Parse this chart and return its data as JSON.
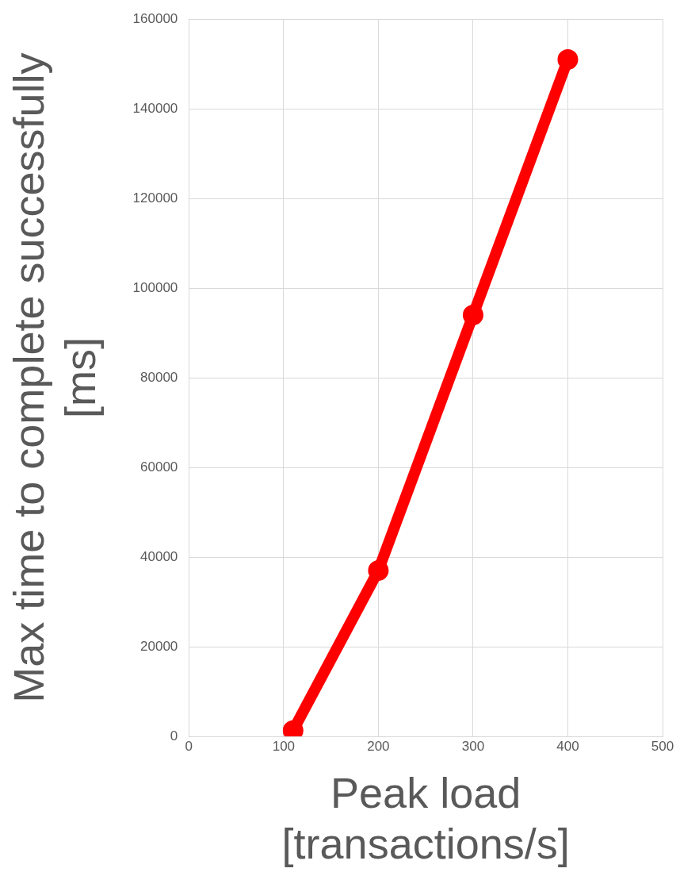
{
  "chart_data": {
    "type": "line",
    "xlabel": "Peak load [transactions/s]",
    "ylabel": "Max time to complete successfully [ms]",
    "series": [
      {
        "color": "#ff0000",
        "x": [
          110,
          200,
          300,
          400
        ],
        "values": [
          1300,
          37000,
          94000,
          151000
        ]
      }
    ],
    "xlim": [
      0,
      500
    ],
    "xticks": [
      0,
      100,
      200,
      300,
      400,
      500
    ],
    "ylim": [
      0,
      160000
    ],
    "yticks": [
      0,
      20000,
      40000,
      60000,
      80000,
      100000,
      120000,
      140000,
      160000
    ],
    "grid": true,
    "legend": false,
    "marker": "circle",
    "line_style": "solid"
  }
}
